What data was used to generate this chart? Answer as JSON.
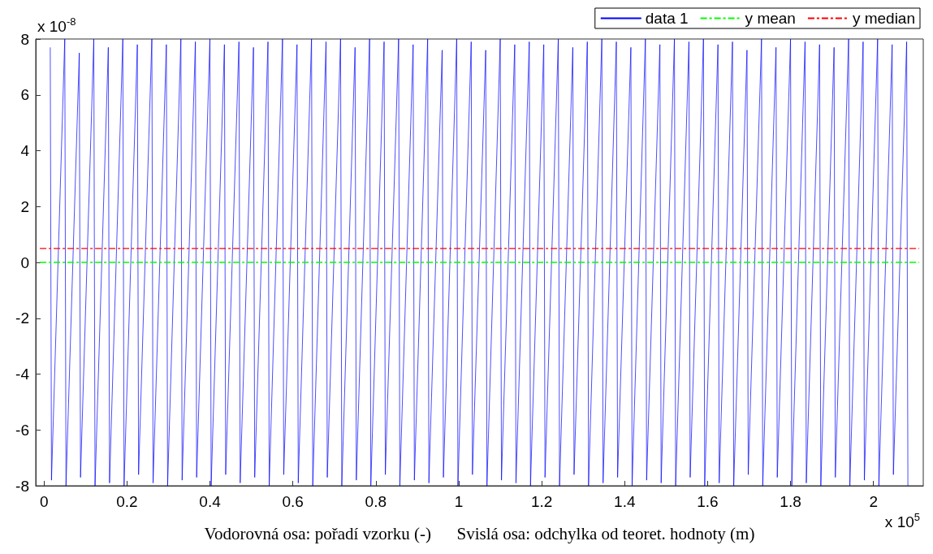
{
  "chart_data": {
    "type": "line",
    "xlabel": "Vodorovná osa: pořadí vzorku (-)      Svislá osa: odchylka od teoret. hodnoty (m)",
    "annotations": [
      "x 10$^{-8}$",
      "x 10$^{5}$"
    ],
    "xlim": [
      -0.02,
      2.12
    ],
    "xticks": [
      0,
      0.2,
      0.4,
      0.6,
      0.8,
      1,
      1.2,
      1.4,
      1.6,
      1.8,
      2
    ],
    "ylim": [
      -8,
      8
    ],
    "yticks": [
      -8,
      -6,
      -4,
      -2,
      0,
      2,
      4,
      6,
      8
    ],
    "grid": false,
    "legend": "top right",
    "marker": "none",
    "series": [
      {
        "name": "data 1",
        "color": "#0000ff",
        "line_style": "solid",
        "x": [
          0.015,
          0.018,
          0.05,
          0.053,
          0.085,
          0.088,
          0.12,
          0.123,
          0.155,
          0.158,
          0.19,
          0.193,
          0.225,
          0.228,
          0.26,
          0.263,
          0.295,
          0.298,
          0.33,
          0.333,
          0.365,
          0.368,
          0.4,
          0.403,
          0.435,
          0.438,
          0.47,
          0.473,
          0.505,
          0.508,
          0.54,
          0.543,
          0.575,
          0.578,
          0.61,
          0.613,
          0.645,
          0.648,
          0.68,
          0.683,
          0.715,
          0.718,
          0.75,
          0.753,
          0.785,
          0.788,
          0.82,
          0.823,
          0.855,
          0.858,
          0.89,
          0.893,
          0.925,
          0.928,
          0.96,
          0.963,
          0.995,
          0.998,
          1.03,
          1.033,
          1.065,
          1.068,
          1.1,
          1.103,
          1.135,
          1.138,
          1.17,
          1.173,
          1.205,
          1.208,
          1.24,
          1.243,
          1.275,
          1.278,
          1.31,
          1.313,
          1.345,
          1.348,
          1.38,
          1.383,
          1.415,
          1.418,
          1.45,
          1.453,
          1.485,
          1.488,
          1.52,
          1.523,
          1.555,
          1.558,
          1.59,
          1.593,
          1.625,
          1.628,
          1.66,
          1.663,
          1.695,
          1.698,
          1.73,
          1.733,
          1.765,
          1.768,
          1.8,
          1.803,
          1.835,
          1.838,
          1.87,
          1.873,
          1.905,
          1.908,
          1.94,
          1.943,
          1.975,
          1.978,
          2.01,
          2.013,
          2.045,
          2.048,
          2.08,
          2.083
        ],
        "values": [
          7.7,
          -7.8,
          8.0,
          -8.0,
          7.5,
          -7.7,
          8.0,
          -8.0,
          7.7,
          -7.9,
          8.0,
          -8.0,
          7.8,
          -7.6,
          8.0,
          -7.9,
          7.8,
          -8.0,
          8.0,
          -7.8,
          7.9,
          -7.7,
          8.0,
          -8.0,
          7.8,
          -7.6,
          7.9,
          -7.9,
          7.7,
          -7.7,
          7.9,
          -8.0,
          8.0,
          -7.6,
          7.8,
          -7.9,
          8.0,
          -8.0,
          7.9,
          -7.7,
          8.0,
          -8.0,
          7.7,
          -7.8,
          8.0,
          -8.0,
          7.9,
          -7.6,
          8.0,
          -8.0,
          7.8,
          -7.8,
          8.0,
          -7.9,
          7.6,
          -7.7,
          8.0,
          -8.0,
          7.9,
          -7.6,
          7.6,
          -8.0,
          8.0,
          -7.8,
          7.8,
          -7.9,
          7.9,
          -8.0,
          7.8,
          -7.7,
          8.0,
          -8.0,
          7.7,
          -7.6,
          7.9,
          -8.0,
          8.0,
          -7.9,
          7.9,
          -7.7,
          7.7,
          -8.0,
          8.0,
          -7.8,
          7.8,
          -7.9,
          8.0,
          -8.0,
          7.9,
          -7.7,
          8.0,
          -8.0,
          7.8,
          -7.9,
          7.9,
          -8.0,
          7.6,
          -7.6,
          8.0,
          -8.0,
          7.7,
          -7.7,
          8.0,
          -8.0,
          7.9,
          -7.9,
          7.8,
          -8.0,
          7.7,
          -7.7,
          8.0,
          -8.0,
          7.9,
          -7.8,
          8.0,
          -8.0,
          7.8,
          -7.6,
          7.9,
          -8.0
        ]
      },
      {
        "name": "y mean",
        "color": "#00ff00",
        "line_style": "dashed",
        "x": [
          -0.01,
          2.11
        ],
        "values": [
          0,
          0
        ]
      },
      {
        "name": "y median",
        "color": "#ff0000",
        "line_style": "dashed",
        "x": [
          -0.01,
          2.11
        ],
        "values": [
          0.5,
          0.5
        ]
      }
    ]
  }
}
